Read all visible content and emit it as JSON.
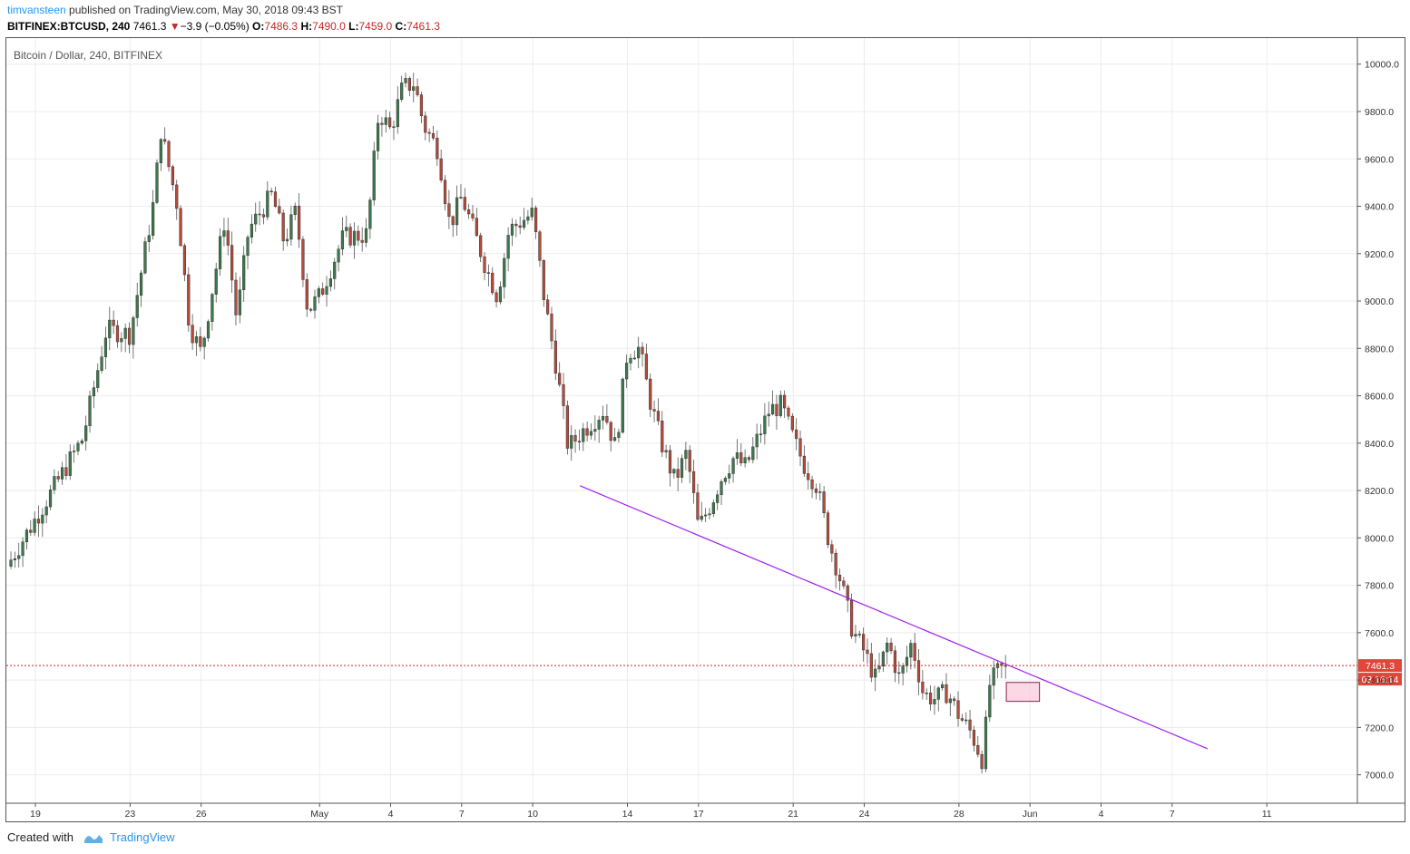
{
  "header": {
    "user": "timvansteen",
    "published": "published on TradingView.com, May 30, 2018 09:43 BST",
    "symbol": "BITFINEX:BTCUSD, 240",
    "last": "7461.3",
    "change_arrow": "▼",
    "change": "−3.9 (−0.05%)",
    "o_label": "O:",
    "o": "7486.3",
    "h_label": "H:",
    "h": "7490.0",
    "l_label": "L:",
    "l": "7459.0",
    "c_label": "C:",
    "c": "7461.3"
  },
  "footer": {
    "created": "Created with",
    "brand": "TradingView",
    "icon": "tradingview-logo-icon"
  },
  "colors": {
    "up": "#3c7a4c",
    "down": "#b84a3a",
    "trend": "#a020f0",
    "price_line": "#c62828",
    "badge": "#e0463a",
    "box_fill": "#f8c8d8",
    "box_stroke": "#8a2050"
  },
  "chart_data": {
    "type": "candlestick",
    "title": "Bitcoin / Dollar, 240, BITFINEX",
    "ylim": [
      6880,
      10110
    ],
    "y_ticks": [
      7000,
      7200,
      7400,
      7600,
      7800,
      8000,
      8200,
      8400,
      8600,
      8800,
      9000,
      9200,
      9400,
      9600,
      9800,
      10000
    ],
    "y_tick_labels": [
      "7000.0",
      "7200.0",
      "7400.0",
      "7600.0",
      "7800.0",
      "8000.0",
      "8200.0",
      "8400.0",
      "8600.0",
      "8800.0",
      "9000.0",
      "9200.0",
      "9400.0",
      "9600.0",
      "9800.0",
      "10000.0"
    ],
    "x_ticks": [
      {
        "label": "19",
        "day": 0
      },
      {
        "label": "23",
        "day": 4
      },
      {
        "label": "26",
        "day": 7
      },
      {
        "label": "May",
        "day": 12
      },
      {
        "label": "4",
        "day": 15
      },
      {
        "label": "7",
        "day": 18
      },
      {
        "label": "10",
        "day": 21
      },
      {
        "label": "14",
        "day": 25
      },
      {
        "label": "17",
        "day": 28
      },
      {
        "label": "21",
        "day": 32
      },
      {
        "label": "24",
        "day": 35
      },
      {
        "label": "28",
        "day": 39
      },
      {
        "label": "Jun",
        "day": 42
      },
      {
        "label": "4",
        "day": 45
      },
      {
        "label": "7",
        "day": 48
      },
      {
        "label": "11",
        "day": 52
      }
    ],
    "key_closes": [
      [
        -1.2,
        7880
      ],
      [
        0,
        8080
      ],
      [
        1,
        8250
      ],
      [
        2,
        8420
      ],
      [
        3,
        8880
      ],
      [
        4,
        8860
      ],
      [
        5,
        9420
      ],
      [
        5.3,
        9720
      ],
      [
        6,
        9400
      ],
      [
        6.5,
        8900
      ],
      [
        7,
        8780
      ],
      [
        8,
        9350
      ],
      [
        8.5,
        8920
      ],
      [
        9,
        9300
      ],
      [
        10,
        9450
      ],
      [
        10.5,
        9250
      ],
      [
        11,
        9380
      ],
      [
        11.5,
        8960
      ],
      [
        12,
        9020
      ],
      [
        13,
        9270
      ],
      [
        14,
        9280
      ],
      [
        14.5,
        9800
      ],
      [
        15,
        9720
      ],
      [
        15.5,
        9900
      ],
      [
        16,
        9920
      ],
      [
        16.4,
        9740
      ],
      [
        17,
        9640
      ],
      [
        17.5,
        9320
      ],
      [
        18,
        9440
      ],
      [
        18.5,
        9300
      ],
      [
        19,
        9150
      ],
      [
        19.5,
        9020
      ],
      [
        20,
        9300
      ],
      [
        21,
        9370
      ],
      [
        21.5,
        9000
      ],
      [
        22,
        8720
      ],
      [
        22.5,
        8380
      ],
      [
        23,
        8440
      ],
      [
        24,
        8540
      ],
      [
        24.5,
        8380
      ],
      [
        25,
        8790
      ],
      [
        25.5,
        8800
      ],
      [
        26,
        8560
      ],
      [
        26.5,
        8380
      ],
      [
        27,
        8240
      ],
      [
        27.5,
        8360
      ],
      [
        28,
        8040
      ],
      [
        28.5,
        8140
      ],
      [
        29,
        8260
      ],
      [
        29.5,
        8340
      ],
      [
        30,
        8300
      ],
      [
        30.5,
        8420
      ],
      [
        31,
        8540
      ],
      [
        31.5,
        8560
      ],
      [
        32,
        8420
      ],
      [
        32.5,
        8300
      ],
      [
        33,
        8220
      ],
      [
        33.5,
        7990
      ],
      [
        34,
        7820
      ],
      [
        34.5,
        7610
      ],
      [
        35,
        7520
      ],
      [
        35.5,
        7400
      ],
      [
        36,
        7560
      ],
      [
        36.5,
        7400
      ],
      [
        37,
        7560
      ],
      [
        37.5,
        7340
      ],
      [
        38,
        7320
      ],
      [
        38.5,
        7350
      ],
      [
        39,
        7250
      ],
      [
        39.5,
        7180
      ],
      [
        40,
        7060
      ],
      [
        40.3,
        7380
      ],
      [
        40.6,
        7430
      ],
      [
        41,
        7461
      ]
    ],
    "last_price": 7461.3,
    "last_price_label": "7461.3",
    "countdown": "03:16:14",
    "trendline": {
      "x1": 23.0,
      "y1": 8220,
      "x2": 49.5,
      "y2": 7110
    },
    "box": {
      "x1": 41,
      "x2": 42.4,
      "y_top": 7390,
      "y_bottom": 7310
    }
  }
}
